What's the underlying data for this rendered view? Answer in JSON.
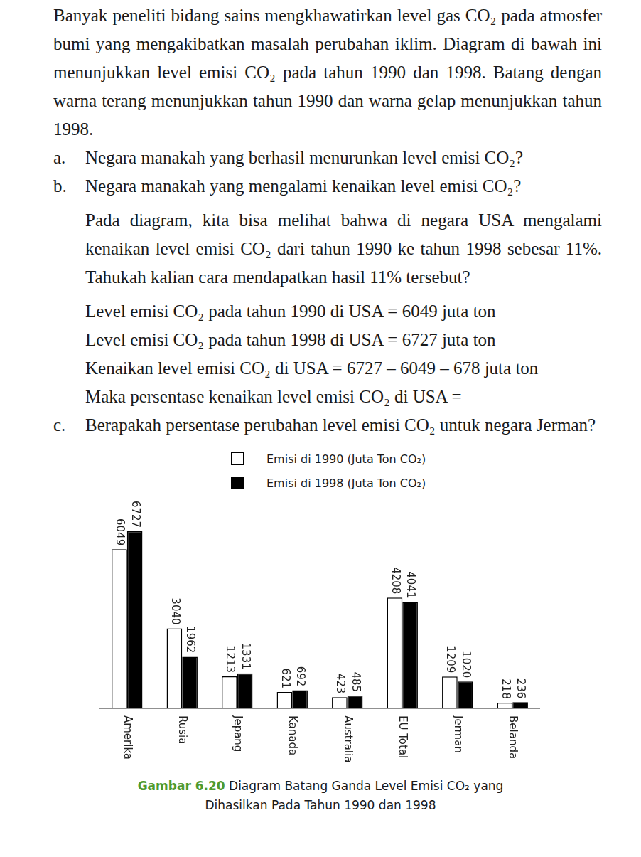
{
  "intro": "Banyak peneliti bidang sains mengkhawatirkan level gas CO₂ pada atmosfer bumi yang mengakibatkan masalah perubahan iklim. Diagram di bawah ini menunjukkan level emisi CO₂ pada tahun 1990 dan 1998. Batang dengan warna terang menunjukkan tahun 1990 dan warna gelap menunjukkan tahun 1998.",
  "questions": [
    {
      "label": "a.",
      "text": "Negara manakah yang berhasil menurunkan level emisi CO₂?"
    },
    {
      "label": "b.",
      "text": "Negara manakah yang mengalami kenaikan level emisi CO₂?",
      "explanation": "Pada diagram, kita bisa melihat bahwa di negara USA mengalami kenaikan level emisi CO₂ dari tahun 1990 ke tahun 1998 sebesar 11%. Tahukah kalian cara mendapatkan hasil 11% tersebut?",
      "calculation": [
        "Level emisi CO₂ pada tahun 1990 di USA = 6049 juta ton",
        "Level emisi CO₂ pada tahun 1998 di USA = 6727 juta ton",
        "Kenaikan level emisi CO₂ di USA = 6727 – 6049 – 678 juta ton",
        "Maka persentase kenaikan level emisi CO₂ di USA ="
      ]
    },
    {
      "label": "c.",
      "text": "Berapakah persentase perubahan level emisi CO₂ untuk negara Jerman?"
    }
  ],
  "chart_data": {
    "type": "bar",
    "categories": [
      "Amerika",
      "Rusia",
      "Jepang",
      "Kanada",
      "Australia",
      "EU Total",
      "Jerman",
      "Belanda"
    ],
    "series": [
      {
        "name": "Emisi di 1990 (Juta Ton CO₂)",
        "color": "#ffffff",
        "values": [
          6049,
          3040,
          1213,
          621,
          423,
          4208,
          1209,
          218
        ]
      },
      {
        "name": "Emisi di 1998 (Juta Ton CO₂)",
        "color": "#000000",
        "values": [
          6727,
          1962,
          1331,
          692,
          485,
          4041,
          1020,
          236
        ]
      }
    ],
    "ylim": [
      0,
      8000
    ],
    "grid": false,
    "legend": "top",
    "data_labels": true,
    "tick_labels": "x"
  },
  "caption": {
    "number": "Gambar 6.20",
    "text": "Diagram Batang Ganda Level Emisi CO₂ yang Dihasilkan Pada Tahun 1990 dan 1998"
  }
}
